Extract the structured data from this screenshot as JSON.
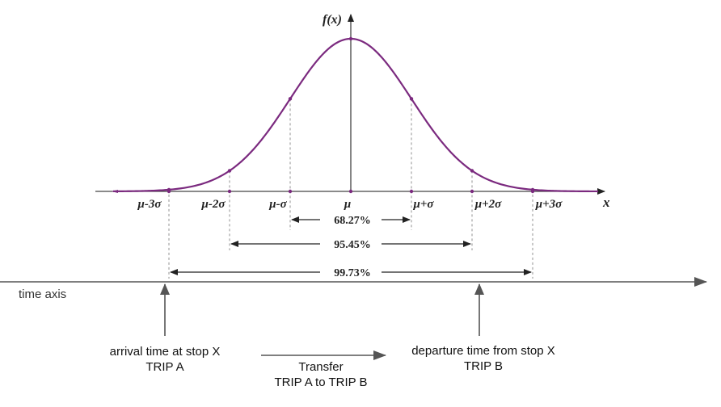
{
  "curve": {
    "y_axis_label": "f(x)",
    "x_axis_label": "x",
    "tick_labels": [
      "μ-3σ",
      "μ-2σ",
      "μ-σ",
      "μ",
      "μ+σ",
      "μ+2σ",
      "μ+3σ"
    ],
    "intervals": [
      {
        "label": "68.27%",
        "sigma": 1
      },
      {
        "label": "95.45%",
        "sigma": 2
      },
      {
        "label": "99.73%",
        "sigma": 3
      }
    ],
    "color": "#7b2a7f"
  },
  "timeline": {
    "axis_label": "time axis",
    "arrival": {
      "line1": "arrival time at stop X",
      "line2": "TRIP A"
    },
    "departure": {
      "line1": "departure time from stop X",
      "line2": "TRIP B"
    },
    "transfer": {
      "line1": "Transfer",
      "line2": "TRIP A  to TRIP B"
    }
  }
}
